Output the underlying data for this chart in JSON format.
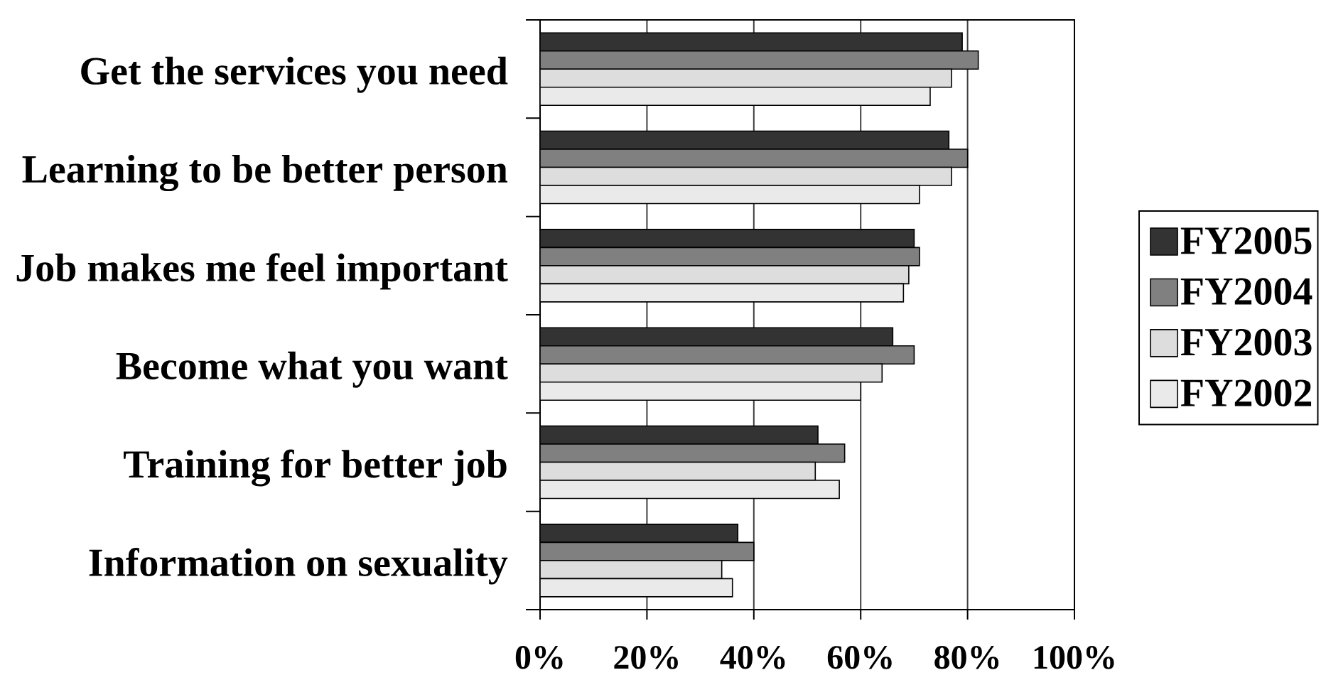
{
  "chart_data": {
    "type": "bar",
    "orientation": "horizontal",
    "categories": [
      "Get the services you need",
      "Learning to be better person",
      "Job makes me feel important",
      "Become what you want",
      "Training for better job",
      "Information on sexuality"
    ],
    "series": [
      {
        "name": "FY2005",
        "color": "#333333",
        "values": [
          79,
          76.5,
          70,
          66,
          52,
          37
        ]
      },
      {
        "name": "FY2004",
        "color": "#808080",
        "values": [
          82,
          80,
          71,
          70,
          57,
          40
        ]
      },
      {
        "name": "FY2003",
        "color": "#dddddd",
        "values": [
          77,
          77,
          69,
          64,
          51.5,
          34
        ]
      },
      {
        "name": "FY2002",
        "color": "#eaeaea",
        "values": [
          73,
          71,
          68,
          60,
          56,
          36
        ]
      }
    ],
    "xlim": [
      0,
      100
    ],
    "xticks": [
      {
        "value": 0,
        "label": "0%"
      },
      {
        "value": 20,
        "label": "20%"
      },
      {
        "value": 40,
        "label": "40%"
      },
      {
        "value": 60,
        "label": "60%"
      },
      {
        "value": 80,
        "label": "80%"
      },
      {
        "value": 100,
        "label": "100%"
      }
    ],
    "grid": "x",
    "legend": "right"
  }
}
